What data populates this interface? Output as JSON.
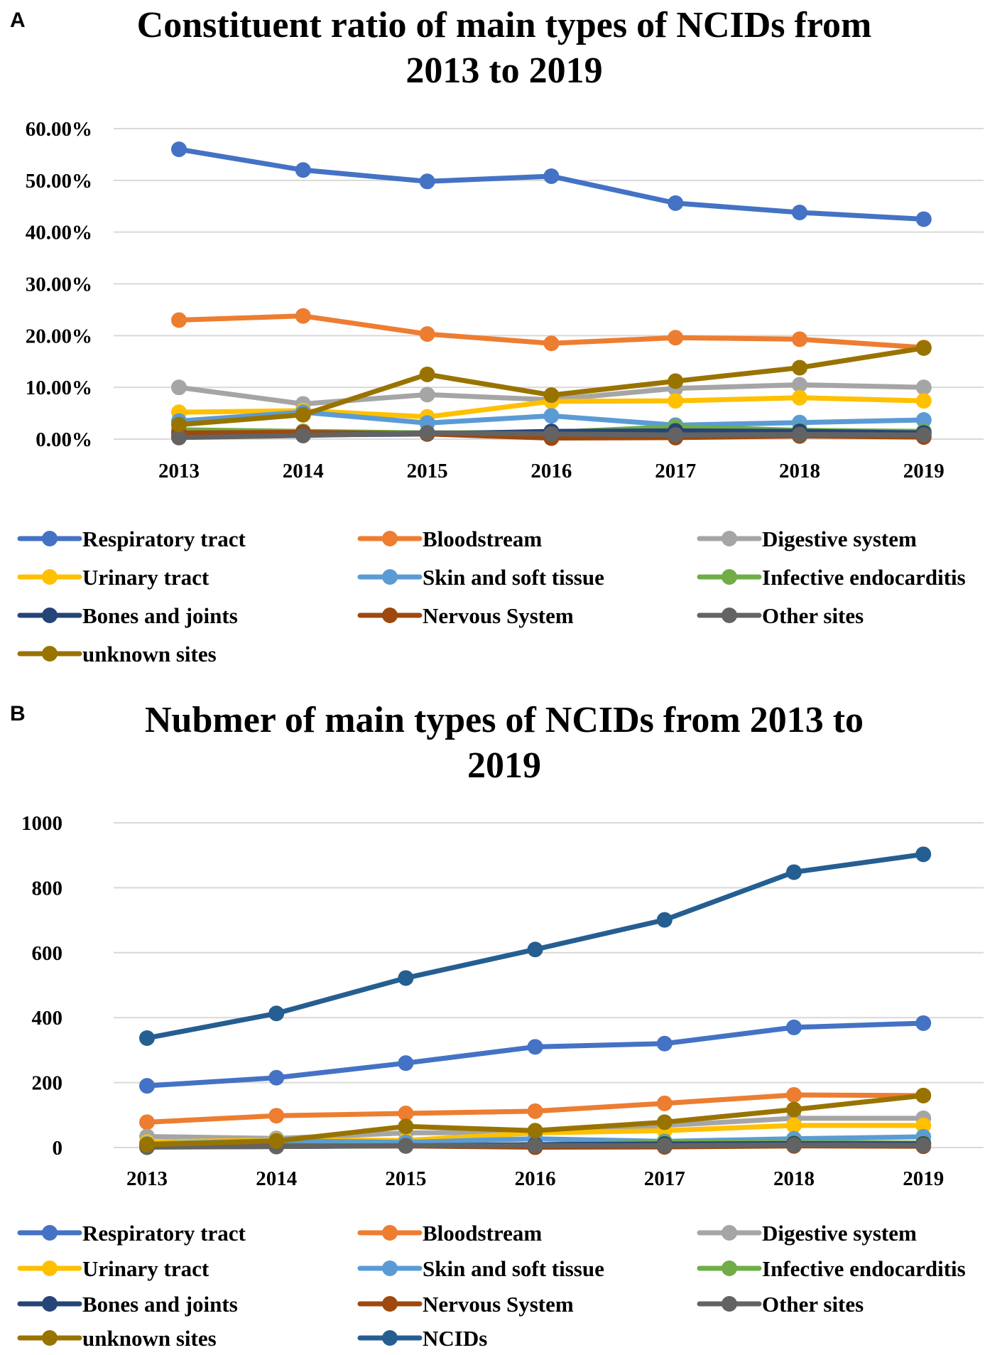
{
  "colors": {
    "respiratory": "#4472c4",
    "bloodstream": "#ed7d31",
    "digestive": "#a5a5a5",
    "urinary": "#ffc000",
    "skin": "#5b9bd5",
    "endocarditis": "#70ad47",
    "bones": "#264478",
    "nervous": "#9e480e",
    "other": "#636363",
    "unknown": "#997300",
    "ncids": "#255e91"
  },
  "chart_data": [
    {
      "panel": "A",
      "type": "line",
      "title": [
        "Constituent ratio of main types of NCIDs from",
        "2013 to 2019"
      ],
      "categories": [
        "2013",
        "2014",
        "2015",
        "2016",
        "2017",
        "2018",
        "2019"
      ],
      "ylim": [
        0,
        60
      ],
      "yticks": [
        "0.00%",
        "10.00%",
        "20.00%",
        "30.00%",
        "40.00%",
        "50.00%",
        "60.00%"
      ],
      "xlabel": "",
      "ylabel": "",
      "grid": true,
      "legend_position": "bottom",
      "series": [
        {
          "name": "Respiratory tract",
          "color_key": "respiratory",
          "values": [
            56.0,
            52.0,
            49.8,
            50.8,
            45.6,
            43.8,
            42.5
          ]
        },
        {
          "name": "Bloodstream",
          "color_key": "bloodstream",
          "values": [
            23.0,
            23.8,
            20.3,
            18.5,
            19.6,
            19.3,
            17.7
          ]
        },
        {
          "name": "Digestive system",
          "color_key": "digestive",
          "values": [
            10.0,
            6.8,
            8.6,
            7.6,
            9.8,
            10.5,
            10.0
          ]
        },
        {
          "name": "Urinary tract",
          "color_key": "urinary",
          "values": [
            5.2,
            5.5,
            4.3,
            7.3,
            7.4,
            8.0,
            7.4
          ]
        },
        {
          "name": "Skin and soft tissue",
          "color_key": "skin",
          "values": [
            3.5,
            5.2,
            3.1,
            4.5,
            2.7,
            3.2,
            3.7
          ]
        },
        {
          "name": "Infective endocarditis",
          "color_key": "endocarditis",
          "values": [
            1.8,
            1.5,
            1.2,
            1.3,
            2.4,
            1.7,
            1.5
          ]
        },
        {
          "name": "Bones and joints",
          "color_key": "bones",
          "values": [
            0.5,
            0.8,
            1.0,
            1.5,
            1.6,
            1.5,
            1.2
          ]
        },
        {
          "name": "Nervous System",
          "color_key": "nervous",
          "values": [
            1.2,
            1.3,
            1.0,
            0.2,
            0.3,
            0.6,
            0.4
          ]
        },
        {
          "name": "Other sites",
          "color_key": "other",
          "values": [
            0.3,
            0.7,
            1.2,
            1.0,
            0.8,
            0.9,
            0.8
          ]
        },
        {
          "name": "unknown sites",
          "color_key": "unknown",
          "values": [
            2.8,
            4.7,
            12.5,
            8.5,
            11.2,
            13.8,
            17.6
          ]
        }
      ]
    },
    {
      "panel": "B",
      "type": "line",
      "title": [
        "Nubmer of main types of NCIDs from 2013 to",
        "2019"
      ],
      "categories": [
        "2013",
        "2014",
        "2015",
        "2016",
        "2017",
        "2018",
        "2019"
      ],
      "ylim": [
        0,
        1000
      ],
      "yticks": [
        "0",
        "200",
        "400",
        "600",
        "800",
        "1000"
      ],
      "xlabel": "",
      "ylabel": "",
      "grid": true,
      "legend_position": "bottom",
      "series": [
        {
          "name": "Respiratory tract",
          "color_key": "respiratory",
          "values": [
            190,
            215,
            260,
            310,
            320,
            370,
            383
          ]
        },
        {
          "name": "Bloodstream",
          "color_key": "bloodstream",
          "values": [
            78,
            98,
            105,
            112,
            136,
            162,
            160
          ]
        },
        {
          "name": "Digestive system",
          "color_key": "digestive",
          "values": [
            34,
            28,
            45,
            47,
            68,
            90,
            90
          ]
        },
        {
          "name": "Urinary tract",
          "color_key": "urinary",
          "values": [
            17,
            23,
            22,
            45,
            52,
            68,
            68
          ]
        },
        {
          "name": "Skin and soft tissue",
          "color_key": "skin",
          "values": [
            11,
            21,
            16,
            27,
            19,
            27,
            33
          ]
        },
        {
          "name": "Infective endocarditis",
          "color_key": "endocarditis",
          "values": [
            6,
            6,
            6,
            8,
            17,
            15,
            14
          ]
        },
        {
          "name": "Bones and joints",
          "color_key": "bones",
          "values": [
            2,
            3,
            5,
            9,
            11,
            12,
            11
          ]
        },
        {
          "name": "Nervous System",
          "color_key": "nervous",
          "values": [
            4,
            5,
            5,
            1,
            2,
            5,
            4
          ]
        },
        {
          "name": "Other sites",
          "color_key": "other",
          "values": [
            1,
            3,
            6,
            6,
            6,
            8,
            7
          ]
        },
        {
          "name": "unknown sites",
          "color_key": "unknown",
          "values": [
            9,
            20,
            65,
            52,
            78,
            117,
            160
          ]
        },
        {
          "name": "NCIDs",
          "color_key": "ncids",
          "values": [
            337,
            413,
            522,
            610,
            701,
            848,
            903
          ]
        }
      ]
    }
  ]
}
